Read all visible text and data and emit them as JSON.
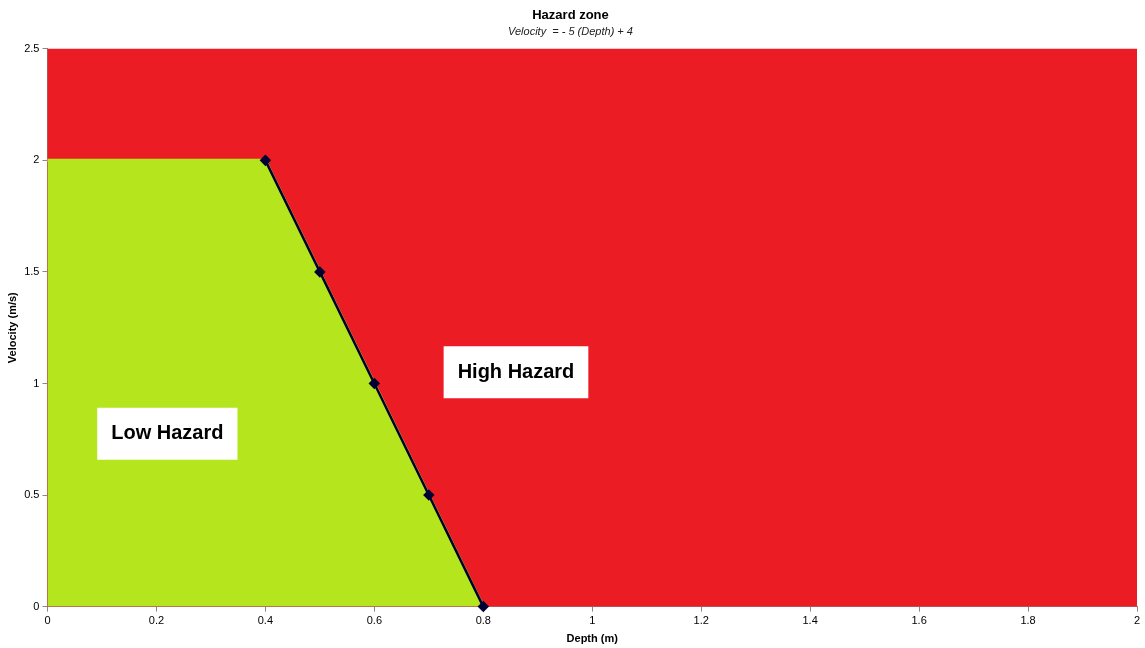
{
  "chart_data": {
    "type": "area",
    "title": "Hazard zone",
    "subtitle": "Velocity  = - 5 (Depth) + 4",
    "xlabel": "Depth (m)",
    "ylabel": "Velocity (m/s)",
    "xlim": [
      0,
      2
    ],
    "xticks": [
      0,
      0.2,
      0.4,
      0.6,
      0.8,
      1,
      1.2,
      1.4,
      1.6,
      1.8,
      2
    ],
    "ylim": [
      0,
      2.5
    ],
    "yticks": [
      0,
      0.5,
      1,
      1.5,
      2,
      2.5
    ],
    "series": [
      {
        "color": "#b5e51d",
        "x": [
          0,
          0.4,
          0.5,
          0.6,
          0.7,
          0.8
        ],
        "values": [
          2,
          2,
          1.5,
          1,
          0.5,
          0
        ]
      },
      {
        "type": "line",
        "color": "#000033",
        "x": [
          0.4,
          0.5,
          0.6,
          0.7,
          0.8
        ],
        "values": [
          2,
          1.5,
          1,
          0.5,
          0
        ],
        "marker": "diamond"
      }
    ],
    "bands": [
      {
        "axis": "y",
        "from": 0,
        "to": 2.5,
        "color": "#ec1c24"
      }
    ],
    "annotations": [
      "High Hazard",
      "Low Hazard"
    ],
    "grid": false,
    "legend": false
  }
}
